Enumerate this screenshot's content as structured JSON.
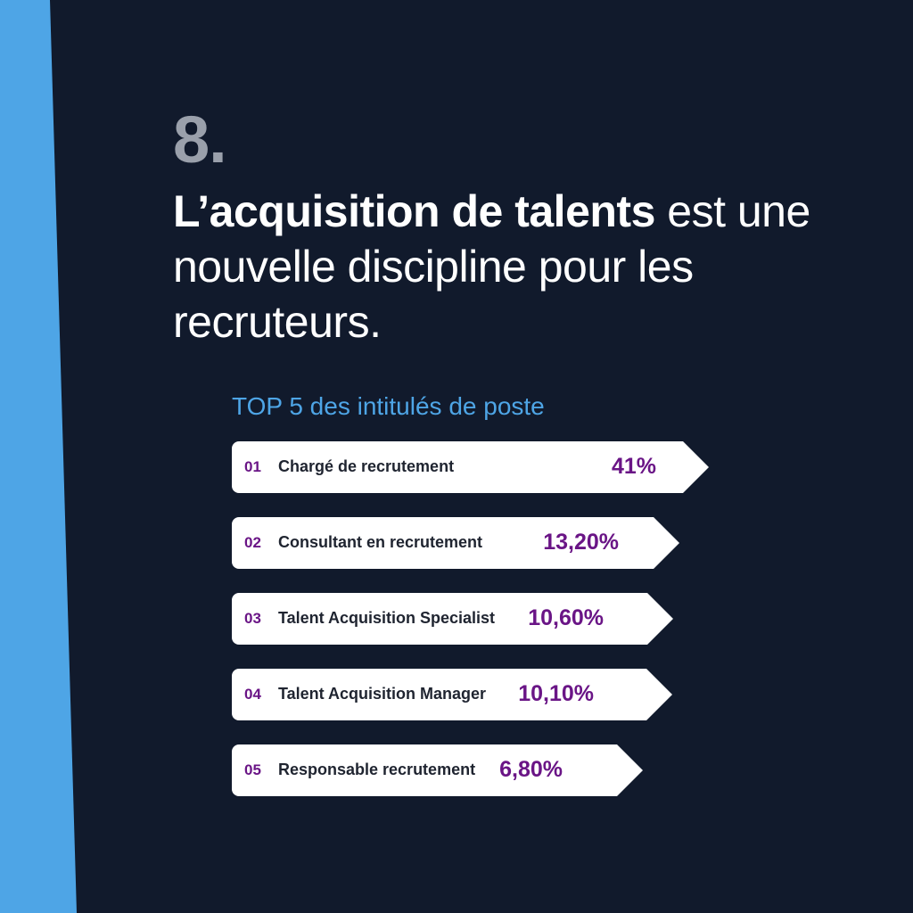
{
  "colors": {
    "background": "#111a2c",
    "accent_band": "#4ea5e6",
    "number": "#9aa0ab",
    "bar": "#ffffff",
    "rank_and_value": "#6a1586",
    "subtitle": "#4ea5e6"
  },
  "header": {
    "number": "8.",
    "headline_bold": "L’acquisition de talents",
    "headline_rest": " est une nouvelle discipline pour les recruteurs."
  },
  "chart_data": {
    "type": "bar",
    "orientation": "horizontal",
    "title": "TOP 5 des intitulés de poste",
    "categories": [
      "Chargé de recrutement",
      "Consultant en recrutement",
      "Talent Acquisition Specialist",
      "Talent Acquisition Manager",
      "Responsable recrutement"
    ],
    "ranks": [
      "01",
      "02",
      "03",
      "04",
      "05"
    ],
    "values": [
      41,
      13.2,
      10.6,
      10.1,
      6.8
    ],
    "value_labels": [
      "41%",
      "13,20%",
      "10,60%",
      "10,10%",
      "6,80%"
    ],
    "unit": "%"
  }
}
